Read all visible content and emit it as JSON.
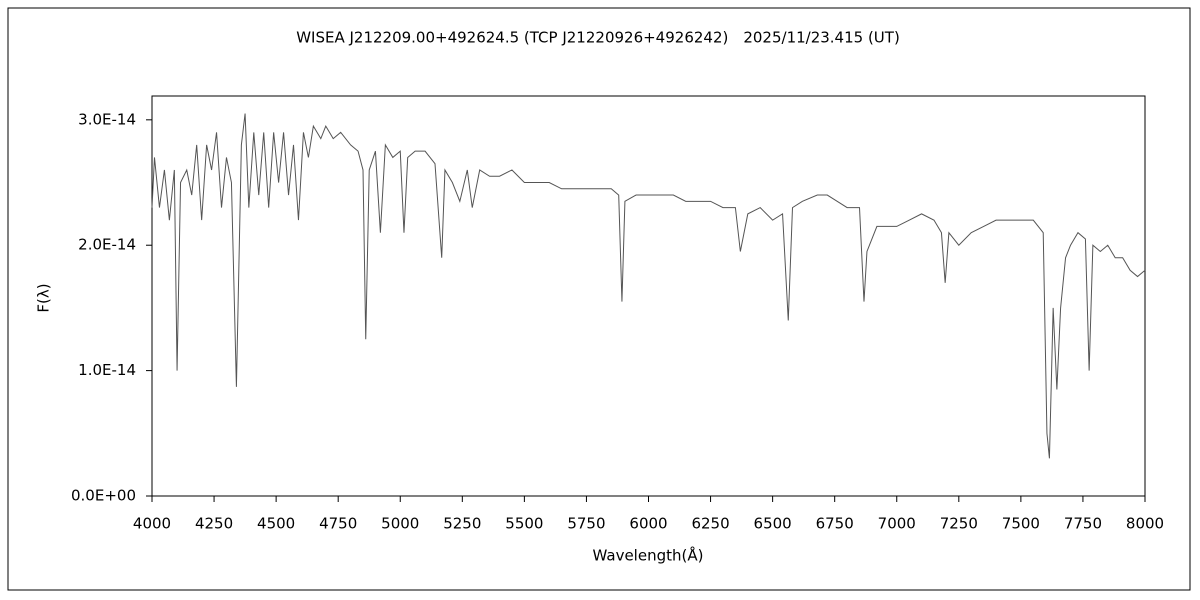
{
  "chart_data": {
    "type": "line",
    "title": "WISEA J212209.00+492624.5 (TCP J21220926+4926242)　2025/11/23.415 (UT)",
    "x_label": "Wavelength(Å)",
    "y_label": "F(λ)",
    "x": [
      4000,
      4010,
      4030,
      4050,
      4070,
      4090,
      4101,
      4115,
      4140,
      4160,
      4180,
      4200,
      4220,
      4240,
      4260,
      4280,
      4300,
      4320,
      4340,
      4360,
      4375,
      4390,
      4410,
      4430,
      4450,
      4470,
      4490,
      4510,
      4530,
      4550,
      4570,
      4590,
      4610,
      4630,
      4650,
      4680,
      4700,
      4730,
      4760,
      4800,
      4830,
      4850,
      4861,
      4875,
      4900,
      4920,
      4940,
      4970,
      5000,
      5015,
      5030,
      5060,
      5100,
      5140,
      5167,
      5180,
      5210,
      5240,
      5270,
      5290,
      5320,
      5360,
      5400,
      5450,
      5500,
      5550,
      5600,
      5650,
      5700,
      5750,
      5800,
      5850,
      5880,
      5893,
      5905,
      5950,
      6000,
      6050,
      6100,
      6150,
      6200,
      6250,
      6300,
      6350,
      6370,
      6400,
      6450,
      6500,
      6540,
      6563,
      6580,
      6620,
      6680,
      6720,
      6760,
      6800,
      6850,
      6868,
      6880,
      6920,
      6950,
      7000,
      7050,
      7100,
      7150,
      7180,
      7195,
      7210,
      7250,
      7300,
      7350,
      7400,
      7450,
      7500,
      7550,
      7590,
      7605,
      7615,
      7630,
      7645,
      7660,
      7680,
      7700,
      7730,
      7760,
      7775,
      7790,
      7820,
      7850,
      7880,
      7910,
      7940,
      7970,
      8000
    ],
    "series": [
      {
        "name": "F(λ)",
        "color": "#555555",
        "values": [
          2.3e-14,
          2.7e-14,
          2.3e-14,
          2.6e-14,
          2.2e-14,
          2.6e-14,
          1e-14,
          2.5e-14,
          2.6e-14,
          2.4e-14,
          2.8e-14,
          2.2e-14,
          2.8e-14,
          2.6e-14,
          2.9e-14,
          2.3e-14,
          2.7e-14,
          2.5e-14,
          8.7e-15,
          2.8e-14,
          3.05e-14,
          2.3e-14,
          2.9e-14,
          2.4e-14,
          2.9e-14,
          2.3e-14,
          2.9e-14,
          2.5e-14,
          2.9e-14,
          2.4e-14,
          2.8e-14,
          2.2e-14,
          2.9e-14,
          2.7e-14,
          2.95e-14,
          2.85e-14,
          2.95e-14,
          2.85e-14,
          2.9e-14,
          2.8e-14,
          2.75e-14,
          2.6e-14,
          1.25e-14,
          2.6e-14,
          2.75e-14,
          2.1e-14,
          2.8e-14,
          2.7e-14,
          2.75e-14,
          2.1e-14,
          2.7e-14,
          2.75e-14,
          2.75e-14,
          2.65e-14,
          1.9e-14,
          2.6e-14,
          2.5e-14,
          2.35e-14,
          2.6e-14,
          2.3e-14,
          2.6e-14,
          2.55e-14,
          2.55e-14,
          2.6e-14,
          2.5e-14,
          2.5e-14,
          2.5e-14,
          2.45e-14,
          2.45e-14,
          2.45e-14,
          2.45e-14,
          2.45e-14,
          2.4e-14,
          1.55e-14,
          2.35e-14,
          2.4e-14,
          2.4e-14,
          2.4e-14,
          2.4e-14,
          2.35e-14,
          2.35e-14,
          2.35e-14,
          2.3e-14,
          2.3e-14,
          1.95e-14,
          2.25e-14,
          2.3e-14,
          2.2e-14,
          2.25e-14,
          1.4e-14,
          2.3e-14,
          2.35e-14,
          2.4e-14,
          2.4e-14,
          2.35e-14,
          2.3e-14,
          2.3e-14,
          1.55e-14,
          1.95e-14,
          2.15e-14,
          2.15e-14,
          2.15e-14,
          2.2e-14,
          2.25e-14,
          2.2e-14,
          2.1e-14,
          1.7e-14,
          2.1e-14,
          2e-14,
          2.1e-14,
          2.15e-14,
          2.2e-14,
          2.2e-14,
          2.2e-14,
          2.2e-14,
          2.1e-14,
          5e-15,
          3e-15,
          1.5e-14,
          8.5e-15,
          1.5e-14,
          1.9e-14,
          2e-14,
          2.1e-14,
          2.05e-14,
          1e-14,
          2e-14,
          1.95e-14,
          2e-14,
          1.9e-14,
          1.9e-14,
          1.8e-14,
          1.75e-14,
          1.8e-14
        ]
      }
    ],
    "xlim": [
      4000,
      8000
    ],
    "xticks": [
      4000,
      4250,
      4500,
      4750,
      5000,
      5250,
      5500,
      5750,
      6000,
      6250,
      6500,
      6750,
      7000,
      7250,
      7500,
      7750,
      8000
    ],
    "ylim": [
      0,
      3.19e-14
    ],
    "yticks": [
      {
        "value": 0,
        "label": "0.0E+00"
      },
      {
        "value": 1e-14,
        "label": "1.0E-14"
      },
      {
        "value": 2e-14,
        "label": "2.0E-14"
      },
      {
        "value": 3e-14,
        "label": "3.0E-14"
      }
    ],
    "grid": false
  }
}
